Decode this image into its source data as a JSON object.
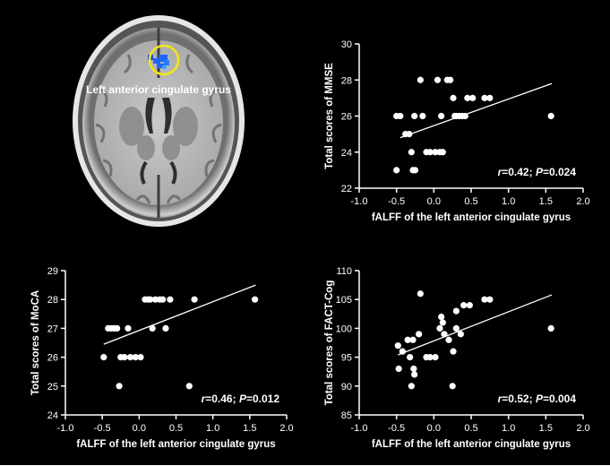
{
  "brain": {
    "region_label": "Left anterior cingulate gyrus",
    "colors": {
      "highlight": "#1e64ff",
      "circle": "#f2e61a"
    }
  },
  "chart_data": [
    {
      "id": "mmse",
      "type": "scatter",
      "xlabel": "fALFF of the left anterior cingulate gyrus",
      "ylabel": "Total scores of MMSE",
      "xlim": [
        -1.0,
        2.0
      ],
      "ylim": [
        22,
        30
      ],
      "xticks": [
        "-1.0",
        "-0.5",
        "0.0",
        "0.5",
        "1.0",
        "1.5",
        "2.0"
      ],
      "yticks": [
        "22",
        "24",
        "26",
        "28",
        "30"
      ],
      "annotation": {
        "r_symbol": "r",
        "r_value": "=0.42; ",
        "p_symbol": "P",
        "p_value": "=0.024"
      },
      "fit_line": [
        [
          -0.45,
          24.8
        ],
        [
          1.58,
          27.8
        ]
      ],
      "points": [
        [
          -0.5,
          26
        ],
        [
          -0.5,
          23
        ],
        [
          -0.45,
          26
        ],
        [
          -0.38,
          25
        ],
        [
          -0.33,
          25
        ],
        [
          -0.3,
          24
        ],
        [
          -0.28,
          23
        ],
        [
          -0.26,
          26
        ],
        [
          -0.25,
          23
        ],
        [
          -0.18,
          28
        ],
        [
          -0.15,
          26
        ],
        [
          -0.1,
          24
        ],
        [
          -0.05,
          24
        ],
        [
          0.02,
          24
        ],
        [
          0.05,
          28
        ],
        [
          0.08,
          24
        ],
        [
          0.1,
          26
        ],
        [
          0.12,
          24
        ],
        [
          0.18,
          28
        ],
        [
          0.22,
          28
        ],
        [
          0.26,
          27
        ],
        [
          0.28,
          26
        ],
        [
          0.3,
          26
        ],
        [
          0.34,
          26
        ],
        [
          0.38,
          26
        ],
        [
          0.42,
          26
        ],
        [
          0.45,
          27
        ],
        [
          0.52,
          27
        ],
        [
          0.68,
          27
        ],
        [
          0.75,
          27
        ],
        [
          1.57,
          26
        ]
      ]
    },
    {
      "id": "moca",
      "type": "scatter",
      "xlabel": "fALFF of the left anterior cingulate gyrus",
      "ylabel": "Total scores of MoCA",
      "xlim": [
        -1.0,
        2.0
      ],
      "ylim": [
        24,
        29
      ],
      "xticks": [
        "-1.0",
        "-0.5",
        "0.0",
        "0.5",
        "1.0",
        "1.5",
        "2.0"
      ],
      "yticks": [
        "24",
        "25",
        "26",
        "27",
        "28",
        "29"
      ],
      "annotation": {
        "r_symbol": "r",
        "r_value": "=0.46; ",
        "p_symbol": "P",
        "p_value": "=0.012"
      },
      "fit_line": [
        [
          -0.48,
          26.45
        ],
        [
          1.58,
          28.5
        ]
      ],
      "points": [
        [
          -0.48,
          26
        ],
        [
          -0.42,
          27
        ],
        [
          -0.38,
          27
        ],
        [
          -0.34,
          27
        ],
        [
          -0.3,
          27
        ],
        [
          -0.27,
          25
        ],
        [
          -0.25,
          26
        ],
        [
          -0.2,
          26
        ],
        [
          -0.15,
          27
        ],
        [
          -0.12,
          26
        ],
        [
          -0.05,
          26
        ],
        [
          0.02,
          26
        ],
        [
          0.08,
          28
        ],
        [
          0.12,
          28
        ],
        [
          0.15,
          28
        ],
        [
          0.18,
          27
        ],
        [
          0.22,
          28
        ],
        [
          0.28,
          28
        ],
        [
          0.32,
          28
        ],
        [
          0.36,
          27
        ],
        [
          0.42,
          28
        ],
        [
          0.68,
          25
        ],
        [
          0.75,
          28
        ],
        [
          1.57,
          28
        ]
      ]
    },
    {
      "id": "fact-cog",
      "type": "scatter",
      "xlabel": "fALFF of the left anterior cingulate gyrus",
      "ylabel": "Total scores of FACT-Cog",
      "xlim": [
        -1.0,
        2.0
      ],
      "ylim": [
        85,
        110
      ],
      "xticks": [
        "-1.0",
        "-0.5",
        "0.0",
        "0.5",
        "1.0",
        "1.5",
        "2.0"
      ],
      "yticks": [
        "85",
        "90",
        "95",
        "100",
        "105",
        "110"
      ],
      "annotation": {
        "r_symbol": "r",
        "r_value": "=0.52; ",
        "p_symbol": "P",
        "p_value": "=0.004"
      },
      "fit_line": [
        [
          -0.48,
          95.4
        ],
        [
          1.58,
          105.8
        ]
      ],
      "points": [
        [
          -0.48,
          97
        ],
        [
          -0.47,
          93
        ],
        [
          -0.42,
          96
        ],
        [
          -0.35,
          98
        ],
        [
          -0.32,
          95
        ],
        [
          -0.3,
          90
        ],
        [
          -0.28,
          98
        ],
        [
          -0.27,
          93
        ],
        [
          -0.26,
          92
        ],
        [
          -0.2,
          99
        ],
        [
          -0.18,
          106
        ],
        [
          -0.1,
          95
        ],
        [
          -0.05,
          95
        ],
        [
          0.02,
          95
        ],
        [
          0.08,
          100
        ],
        [
          0.1,
          102
        ],
        [
          0.12,
          101
        ],
        [
          0.14,
          99
        ],
        [
          0.2,
          98
        ],
        [
          0.25,
          90
        ],
        [
          0.26,
          96
        ],
        [
          0.3,
          100
        ],
        [
          0.3,
          103
        ],
        [
          0.36,
          99
        ],
        [
          0.4,
          104
        ],
        [
          0.48,
          104
        ],
        [
          0.68,
          105
        ],
        [
          0.75,
          105
        ],
        [
          1.57,
          100
        ]
      ]
    }
  ]
}
